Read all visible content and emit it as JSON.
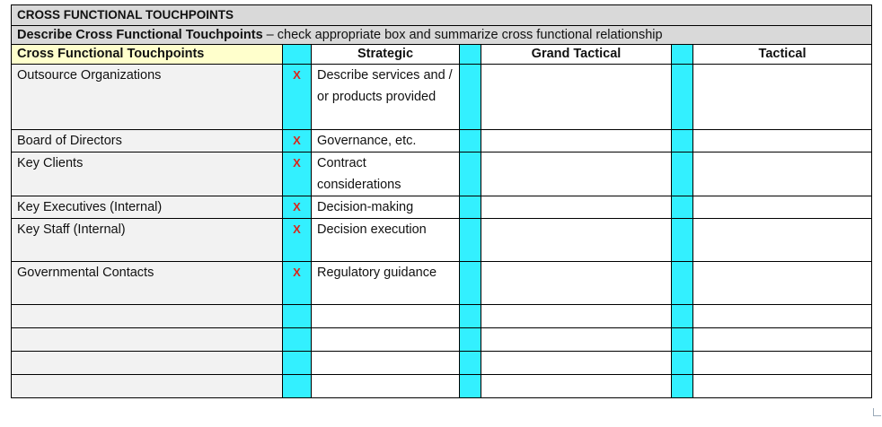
{
  "form": {
    "title": "CROSS FUNCTIONAL TOUCHPOINTS",
    "description_bold": "Describe Cross Functional Touchpoints",
    "description_rest": " – check appropriate box and summarize cross functional relationship",
    "columns": {
      "touchpoints": "Cross Functional Touchpoints",
      "strategic": "Strategic",
      "grand_tactical": "Grand Tactical",
      "tactical": "Tactical"
    },
    "rows": [
      {
        "label": "Outsource Organizations",
        "strategic_check": "X",
        "strategic": "Describe services and / or products provided",
        "grand_tactical_check": "",
        "grand_tactical": "",
        "tactical_check": "",
        "tactical": ""
      },
      {
        "label": "Board of Directors",
        "strategic_check": "X",
        "strategic": "Governance, etc.",
        "grand_tactical_check": "",
        "grand_tactical": "",
        "tactical_check": "",
        "tactical": ""
      },
      {
        "label": "Key Clients",
        "strategic_check": "X",
        "strategic": "Contract considerations",
        "grand_tactical_check": "",
        "grand_tactical": "",
        "tactical_check": "",
        "tactical": ""
      },
      {
        "label": "Key Executives (Internal)",
        "strategic_check": "X",
        "strategic": "Decision-making",
        "grand_tactical_check": "",
        "grand_tactical": "",
        "tactical_check": "",
        "tactical": ""
      },
      {
        "label": "Key Staff (Internal)",
        "strategic_check": "X",
        "strategic": "Decision execution",
        "grand_tactical_check": "",
        "grand_tactical": "",
        "tactical_check": "",
        "tactical": ""
      },
      {
        "label": "Governmental Contacts",
        "strategic_check": "X",
        "strategic": "Regulatory guidance",
        "grand_tactical_check": "",
        "grand_tactical": "",
        "tactical_check": "",
        "tactical": ""
      },
      {
        "label": "",
        "strategic_check": "",
        "strategic": "",
        "grand_tactical_check": "",
        "grand_tactical": "",
        "tactical_check": "",
        "tactical": ""
      },
      {
        "label": "",
        "strategic_check": "",
        "strategic": "",
        "grand_tactical_check": "",
        "grand_tactical": "",
        "tactical_check": "",
        "tactical": ""
      },
      {
        "label": "",
        "strategic_check": "",
        "strategic": "",
        "grand_tactical_check": "",
        "grand_tactical": "",
        "tactical_check": "",
        "tactical": ""
      },
      {
        "label": "",
        "strategic_check": "",
        "strategic": "",
        "grand_tactical_check": "",
        "grand_tactical": "",
        "tactical_check": "",
        "tactical": ""
      }
    ]
  }
}
